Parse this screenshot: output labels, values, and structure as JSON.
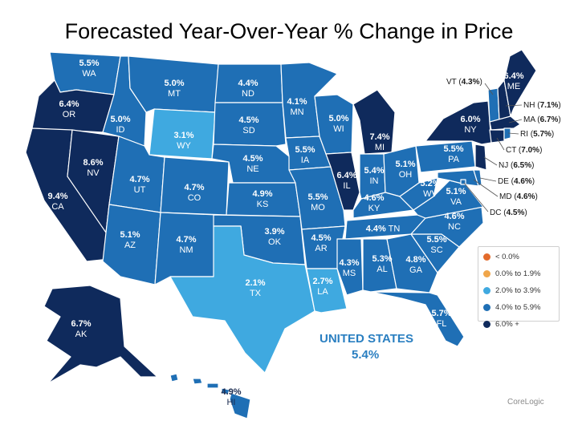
{
  "title": "Forecasted Year-Over-Year % Change in Price",
  "legend": [
    {
      "label": "< 0.0%",
      "color": "#e36b2c"
    },
    {
      "label": "0.0% to 1.9%",
      "color": "#f0a64a"
    },
    {
      "label": "2.0% to 3.9%",
      "color": "#3fa9e0"
    },
    {
      "label": "4.0% to 5.9%",
      "color": "#1f6fb5"
    },
    {
      "label": "6.0% +",
      "color": "#0f2a5c"
    }
  ],
  "national": {
    "name": "UNITED STATES",
    "value": "5.4%"
  },
  "source": "CoreLogic",
  "states": {
    "WA": {
      "value": "5.5%"
    },
    "OR": {
      "value": "6.4%"
    },
    "CA": {
      "value": "9.4%"
    },
    "NV": {
      "value": "8.6%"
    },
    "ID": {
      "value": "5.0%"
    },
    "MT": {
      "value": "5.0%"
    },
    "WY": {
      "value": "3.1%"
    },
    "UT": {
      "value": "4.7%"
    },
    "CO": {
      "value": "4.7%"
    },
    "AZ": {
      "value": "5.1%"
    },
    "NM": {
      "value": "4.7%"
    },
    "ND": {
      "value": "4.4%"
    },
    "SD": {
      "value": "4.5%"
    },
    "NE": {
      "value": "4.5%"
    },
    "KS": {
      "value": "4.9%"
    },
    "OK": {
      "value": "3.9%"
    },
    "TX": {
      "value": "2.1%"
    },
    "MN": {
      "value": "4.1%"
    },
    "IA": {
      "value": "5.5%"
    },
    "MO": {
      "value": "5.5%"
    },
    "AR": {
      "value": "4.5%"
    },
    "LA": {
      "value": "2.7%"
    },
    "WI": {
      "value": "5.0%"
    },
    "IL": {
      "value": "6.4%"
    },
    "MI": {
      "value": "7.4%"
    },
    "IN": {
      "value": "5.4%"
    },
    "OH": {
      "value": "5.1%"
    },
    "KY": {
      "value": "4.6%"
    },
    "TN": {
      "value": "4.4%"
    },
    "MS": {
      "value": "4.3%"
    },
    "AL": {
      "value": "5.3%"
    },
    "GA": {
      "value": "4.8%"
    },
    "FL": {
      "value": "5.7%"
    },
    "SC": {
      "value": "5.5%"
    },
    "NC": {
      "value": "4.6%"
    },
    "VA": {
      "value": "5.1%"
    },
    "WV": {
      "value": "5.2%"
    },
    "PA": {
      "value": "5.5%"
    },
    "NY": {
      "value": "6.0%"
    },
    "ME": {
      "value": "6.4%"
    },
    "AK": {
      "value": "6.7%"
    },
    "HI": {
      "value": "4.9%"
    },
    "VT": {
      "value": "4.3%"
    },
    "NH": {
      "value": "7.1%"
    },
    "MA": {
      "value": "6.7%"
    },
    "RI": {
      "value": "5.7%"
    },
    "CT": {
      "value": "7.0%"
    },
    "NJ": {
      "value": "6.5%"
    },
    "DE": {
      "value": "4.6%"
    },
    "MD": {
      "value": "4.6%"
    },
    "DC": {
      "value": "4.5%"
    }
  },
  "colors": {
    "dark": "#0f2a5c",
    "mid": "#1f6fb5",
    "light": "#3fa9e0"
  }
}
